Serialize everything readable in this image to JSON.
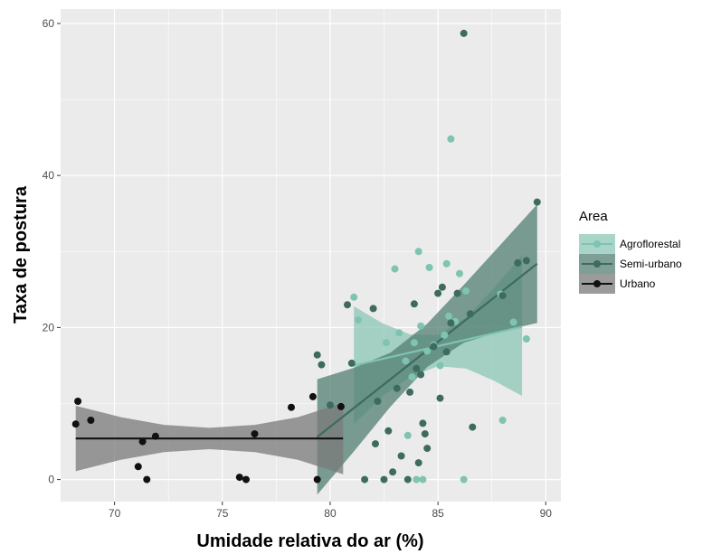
{
  "chart_data": {
    "type": "scatter",
    "title": "",
    "xlabel": "Umidade relativa do ar (%)",
    "ylabel": "Taxa de postura",
    "xlim": [
      67.5,
      90.7
    ],
    "ylim": [
      -2.9,
      61.9
    ],
    "x_ticks": [
      70,
      75,
      80,
      85,
      90
    ],
    "y_ticks": [
      0,
      20,
      40,
      60
    ],
    "x_tick_labels": [
      "70",
      "75",
      "80",
      "85",
      "90"
    ],
    "y_tick_labels": [
      "0",
      "20",
      "40",
      "60"
    ],
    "grid": true,
    "legend": {
      "title": "Area",
      "position": "right"
    },
    "series": [
      {
        "name": "Agroflorestal",
        "color": "#7fc3b2",
        "band_color": "#8cc7b7",
        "fit_line": [
          [
            81.1,
            15.0
          ],
          [
            88.9,
            20.1
          ]
        ],
        "ci_band": {
          "x": [
            81.1,
            82.4,
            83.7,
            85.0,
            86.3,
            87.6,
            88.9
          ],
          "lower": [
            7.3,
            10.9,
            13.5,
            14.9,
            14.6,
            13.0,
            11.0
          ],
          "upper": [
            22.8,
            20.6,
            19.1,
            19.0,
            21.3,
            25.2,
            29.5
          ]
        },
        "points": [
          [
            81.1,
            24.0
          ],
          [
            81.3,
            21.0
          ],
          [
            82.6,
            18.0
          ],
          [
            83.0,
            27.7
          ],
          [
            83.2,
            19.3
          ],
          [
            83.5,
            15.6
          ],
          [
            83.6,
            5.8
          ],
          [
            83.8,
            13.5
          ],
          [
            83.9,
            18.0
          ],
          [
            84.0,
            0.0
          ],
          [
            84.1,
            30.0
          ],
          [
            84.2,
            20.2
          ],
          [
            84.3,
            0.0
          ],
          [
            84.5,
            16.9
          ],
          [
            84.6,
            27.9
          ],
          [
            84.8,
            17.7
          ],
          [
            85.1,
            15.0
          ],
          [
            85.3,
            19.0
          ],
          [
            85.4,
            28.4
          ],
          [
            85.5,
            21.5
          ],
          [
            85.6,
            44.8
          ],
          [
            85.8,
            20.8
          ],
          [
            86.0,
            27.1
          ],
          [
            86.2,
            0.0
          ],
          [
            86.3,
            24.8
          ],
          [
            87.9,
            24.4
          ],
          [
            88.0,
            7.8
          ],
          [
            88.5,
            20.7
          ],
          [
            89.1,
            18.5
          ]
        ]
      },
      {
        "name": "Semi-urbano",
        "color": "#3d6b5f",
        "band_color": "#527f72",
        "fit_line": [
          [
            79.4,
            5.6
          ],
          [
            89.6,
            28.4
          ]
        ],
        "ci_band": {
          "x": [
            79.4,
            81.1,
            82.8,
            84.5,
            86.2,
            87.9,
            89.6
          ],
          "lower": [
            -2.0,
            3.7,
            9.6,
            14.8,
            18.0,
            19.5,
            20.6
          ],
          "upper": [
            13.2,
            14.7,
            16.7,
            20.5,
            25.6,
            30.9,
            36.2
          ]
        },
        "points": [
          [
            79.4,
            16.4
          ],
          [
            79.6,
            15.1
          ],
          [
            80.0,
            9.8
          ],
          [
            80.8,
            23.0
          ],
          [
            81.0,
            15.3
          ],
          [
            81.6,
            0.0
          ],
          [
            82.0,
            22.5
          ],
          [
            82.1,
            4.7
          ],
          [
            82.2,
            10.3
          ],
          [
            82.5,
            0.0
          ],
          [
            82.7,
            6.4
          ],
          [
            82.9,
            1.0
          ],
          [
            83.1,
            12.0
          ],
          [
            83.3,
            3.1
          ],
          [
            83.6,
            0.0
          ],
          [
            83.7,
            11.5
          ],
          [
            83.9,
            23.1
          ],
          [
            84.0,
            14.6
          ],
          [
            84.1,
            2.2
          ],
          [
            84.2,
            13.8
          ],
          [
            84.3,
            7.4
          ],
          [
            84.4,
            6.0
          ],
          [
            84.5,
            4.1
          ],
          [
            84.8,
            17.5
          ],
          [
            85.0,
            24.5
          ],
          [
            85.1,
            10.7
          ],
          [
            85.2,
            25.3
          ],
          [
            85.4,
            16.8
          ],
          [
            85.6,
            20.6
          ],
          [
            85.9,
            24.5
          ],
          [
            86.2,
            58.7
          ],
          [
            86.5,
            21.8
          ],
          [
            86.6,
            6.9
          ],
          [
            88.0,
            24.2
          ],
          [
            88.7,
            28.5
          ],
          [
            89.1,
            28.8
          ],
          [
            89.6,
            36.5
          ]
        ]
      },
      {
        "name": "Urbano",
        "color": "#111111",
        "band_color": "#7a7a7a",
        "fit_line": [
          [
            68.2,
            5.4
          ],
          [
            80.6,
            5.4
          ]
        ],
        "ci_band": {
          "x": [
            68.2,
            70.3,
            72.3,
            74.4,
            76.5,
            78.5,
            80.6
          ],
          "lower": [
            1.1,
            2.6,
            3.6,
            4.0,
            3.6,
            2.6,
            0.7
          ],
          "upper": [
            9.7,
            8.2,
            7.2,
            6.8,
            7.2,
            8.2,
            10.1
          ]
        },
        "points": [
          [
            68.2,
            7.3
          ],
          [
            68.3,
            10.3
          ],
          [
            68.9,
            7.8
          ],
          [
            71.1,
            1.7
          ],
          [
            71.3,
            5.0
          ],
          [
            71.5,
            0.0
          ],
          [
            71.9,
            5.7
          ],
          [
            75.8,
            0.3
          ],
          [
            76.1,
            0.0
          ],
          [
            76.5,
            6.0
          ],
          [
            78.2,
            9.5
          ],
          [
            79.2,
            10.9
          ],
          [
            79.4,
            0.0
          ],
          [
            80.5,
            9.6
          ]
        ]
      }
    ]
  }
}
